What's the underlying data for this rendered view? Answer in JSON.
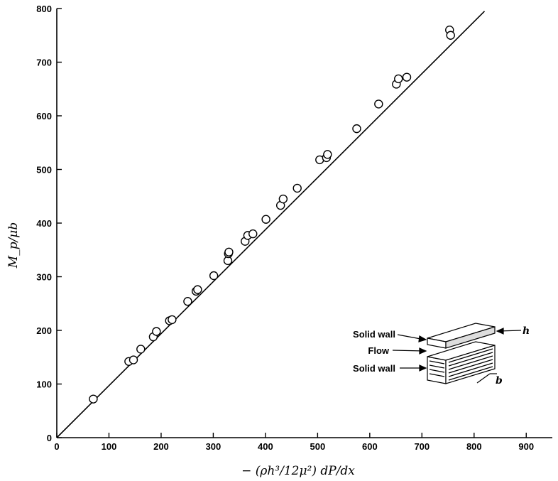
{
  "chart_data": {
    "type": "scatter",
    "xlabel": "− (ρh³/12μ²) dP/dx",
    "ylabel": "M_p/μb",
    "xlim": [
      0,
      950
    ],
    "ylim": [
      0,
      800
    ],
    "xticks": [
      0,
      100,
      200,
      300,
      400,
      500,
      600,
      700,
      800,
      900
    ],
    "yticks": [
      0,
      100,
      200,
      300,
      400,
      500,
      600,
      700,
      800
    ],
    "grid": false,
    "series": [
      {
        "marker": "open-circle",
        "x": [
          70,
          138,
          147,
          161,
          185,
          191,
          216,
          221,
          251,
          267,
          270,
          301,
          328,
          329,
          330,
          361,
          366,
          376,
          401,
          429,
          434,
          461,
          504,
          517,
          519,
          575,
          617,
          651,
          655,
          671,
          753,
          755
        ],
        "y": [
          72,
          142,
          145,
          165,
          188,
          198,
          218,
          220,
          254,
          273,
          276,
          302,
          330,
          343,
          346,
          366,
          377,
          380,
          407,
          433,
          445,
          465,
          518,
          522,
          528,
          576,
          622,
          659,
          669,
          672,
          760,
          750
        ]
      }
    ],
    "fit_line": {
      "x": [
        0,
        820
      ],
      "y": [
        0,
        795
      ]
    },
    "inset": {
      "labels": [
        "Solid wall",
        "Flow",
        "Solid wall"
      ],
      "symbols": [
        "h",
        "b"
      ]
    }
  }
}
